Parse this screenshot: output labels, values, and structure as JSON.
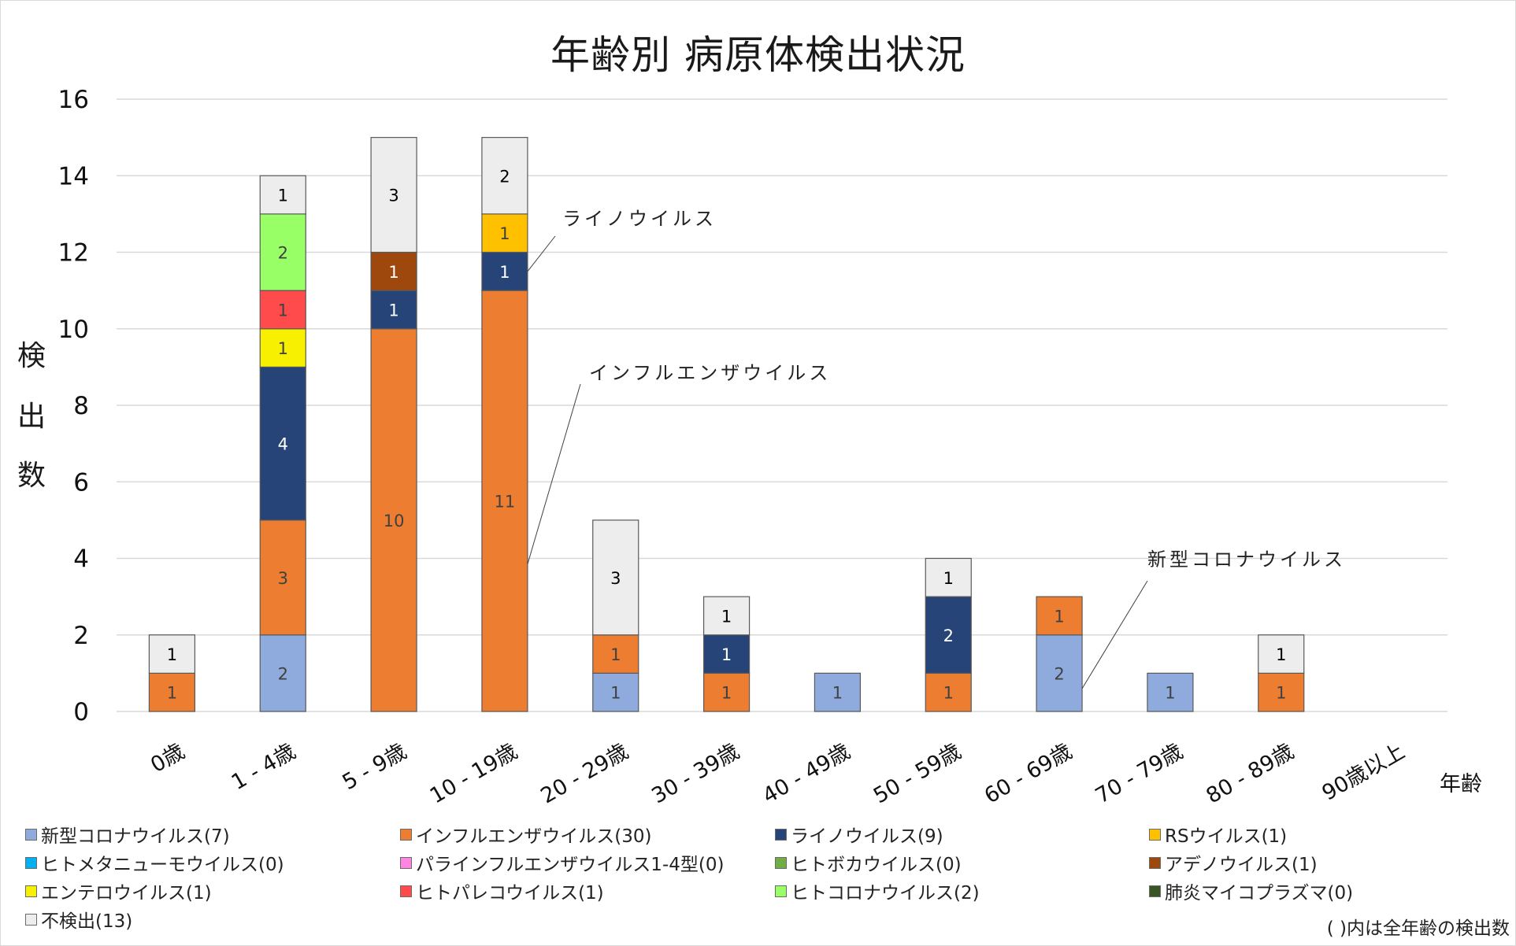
{
  "chart_data": {
    "type": "bar",
    "stacked": true,
    "title": "年齢別 病原体検出状況",
    "xlabel": "年齢",
    "ylabel": "検出数",
    "ylim": [
      0,
      16
    ],
    "yticks": [
      0,
      2,
      4,
      6,
      8,
      10,
      12,
      14,
      16
    ],
    "grid": true,
    "legend_position": "bottom",
    "categories": [
      "0歳",
      "1 - 4歳",
      "5 - 9歳",
      "10 - 19歳",
      "20 - 29歳",
      "30 - 39歳",
      "40 - 49歳",
      "50 - 59歳",
      "60 - 69歳",
      "70 - 79歳",
      "80 - 89歳",
      "90歳以上"
    ],
    "series": [
      {
        "name": "新型コロナウイルス",
        "legend": "新型コロナウイルス(7)",
        "total": 7,
        "color": "#8FAADC",
        "label_color": "#404040",
        "values": [
          0,
          2,
          0,
          0,
          1,
          0,
          1,
          0,
          2,
          1,
          0,
          0
        ]
      },
      {
        "name": "インフルエンザウイルス",
        "legend": "インフルエンザウイルス(30)",
        "total": 30,
        "color": "#ED7D31",
        "label_color": "#404040",
        "values": [
          1,
          3,
          10,
          11,
          1,
          1,
          0,
          1,
          1,
          0,
          1,
          0
        ]
      },
      {
        "name": "ライノウイルス",
        "legend": "ライノウイルス(9)",
        "total": 9,
        "color": "#264478",
        "label_color": "#ffffff",
        "values": [
          0,
          4,
          1,
          1,
          0,
          1,
          0,
          2,
          0,
          0,
          0,
          0
        ]
      },
      {
        "name": "RSウイルス",
        "legend": "RSウイルス(1)",
        "total": 1,
        "color": "#FFC000",
        "label_color": "#404040",
        "values": [
          0,
          0,
          0,
          1,
          0,
          0,
          0,
          0,
          0,
          0,
          0,
          0
        ]
      },
      {
        "name": "ヒトメタニューモウイルス",
        "legend": "ヒトメタニューモウイルス(0)",
        "total": 0,
        "color": "#00B0F0",
        "label_color": "#404040",
        "values": [
          0,
          0,
          0,
          0,
          0,
          0,
          0,
          0,
          0,
          0,
          0,
          0
        ]
      },
      {
        "name": "パラインフルエンザウイルス1-4型",
        "legend": "パラインフルエンザウイルス1-4型(0)",
        "total": 0,
        "color": "#FF85E0",
        "label_color": "#404040",
        "values": [
          0,
          0,
          0,
          0,
          0,
          0,
          0,
          0,
          0,
          0,
          0,
          0
        ]
      },
      {
        "name": "ヒトボカウイルス",
        "legend": "ヒトボカウイルス(0)",
        "total": 0,
        "color": "#70AD47",
        "label_color": "#404040",
        "values": [
          0,
          0,
          0,
          0,
          0,
          0,
          0,
          0,
          0,
          0,
          0,
          0
        ]
      },
      {
        "name": "アデノウイルス",
        "legend": "アデノウイルス(1)",
        "total": 1,
        "color": "#9E480E",
        "label_color": "#ffffff",
        "values": [
          0,
          0,
          1,
          0,
          0,
          0,
          0,
          0,
          0,
          0,
          0,
          0
        ]
      },
      {
        "name": "エンテロウイルス",
        "legend": "エンテロウイルス(1)",
        "total": 1,
        "color": "#F7F000",
        "label_color": "#404040",
        "values": [
          0,
          1,
          0,
          0,
          0,
          0,
          0,
          0,
          0,
          0,
          0,
          0
        ]
      },
      {
        "name": "ヒトパレコウイルス",
        "legend": "ヒトパレコウイルス(1)",
        "total": 1,
        "color": "#FF4B4B",
        "label_color": "#404040",
        "values": [
          0,
          1,
          0,
          0,
          0,
          0,
          0,
          0,
          0,
          0,
          0,
          0
        ]
      },
      {
        "name": "ヒトコロナウイルス",
        "legend": "ヒトコロナウイルス(2)",
        "total": 2,
        "color": "#99FF66",
        "label_color": "#404040",
        "values": [
          0,
          2,
          0,
          0,
          0,
          0,
          0,
          0,
          0,
          0,
          0,
          0
        ]
      },
      {
        "name": "肺炎マイコプラズマ",
        "legend": "肺炎マイコプラズマ(0)",
        "total": 0,
        "color": "#375623",
        "label_color": "#ffffff",
        "values": [
          0,
          0,
          0,
          0,
          0,
          0,
          0,
          0,
          0,
          0,
          0,
          0
        ]
      },
      {
        "name": "不検出",
        "legend": "不検出(13)",
        "total": 13,
        "color": "#EDEDED",
        "label_color": "#000000",
        "values": [
          1,
          1,
          3,
          2,
          3,
          1,
          0,
          1,
          0,
          0,
          1,
          0
        ]
      }
    ],
    "annotations": [
      {
        "text": "ライノウイルス",
        "series": "ライノウイルス",
        "category": "10 - 19歳"
      },
      {
        "text": "インフルエンザウイルス",
        "series": "インフルエンザウイルス",
        "category": "10 - 19歳"
      },
      {
        "text": "新型コロナウイルス",
        "series": "新型コロナウイルス",
        "category": "60 - 69歳"
      }
    ],
    "note": "( )内は全年齢の検出数"
  }
}
